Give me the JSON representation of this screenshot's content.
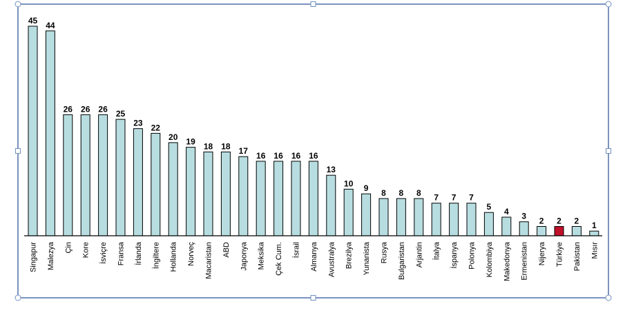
{
  "chart_data": {
    "type": "bar",
    "categories": [
      "Singapur",
      "Malezya",
      "Çin",
      "Kore",
      "İsviçre",
      "Fransa",
      "İrlanda",
      "İngiltere",
      "Hollanda",
      "Norveç",
      "Macaristan",
      "ABD",
      "Japonya",
      "Meksika",
      "Çek Cum.",
      "İsrail",
      "Almanya",
      "Avustralya",
      "Brezilya",
      "Yunanista",
      "Rusya",
      "Bulgaristan",
      "Arjantin",
      "İtalya",
      "İspanya",
      "Polonya",
      "Kolombiya",
      "Makedonya",
      "Ermenistan",
      "Nijerya",
      "Türkiye",
      "Pakistan",
      "Mısır"
    ],
    "values": [
      45,
      44,
      26,
      26,
      26,
      25,
      23,
      22,
      20,
      19,
      18,
      18,
      17,
      16,
      16,
      16,
      16,
      13,
      10,
      9,
      8,
      8,
      8,
      7,
      7,
      7,
      5,
      4,
      3,
      2,
      2,
      2,
      1
    ],
    "title": "",
    "xlabel": "",
    "ylabel": "",
    "ylim": [
      0,
      45
    ],
    "grid": false,
    "legend": "none",
    "colors": {
      "bar_fill": "#b7dde0",
      "bar_stroke": "#000000",
      "highlight_fill": "#c0102a",
      "highlight_category": "Türkiye",
      "frame_stroke": "#4f6fa8",
      "handle_fill": "#ffffff",
      "handle_stroke": "#6f8fbf"
    }
  }
}
